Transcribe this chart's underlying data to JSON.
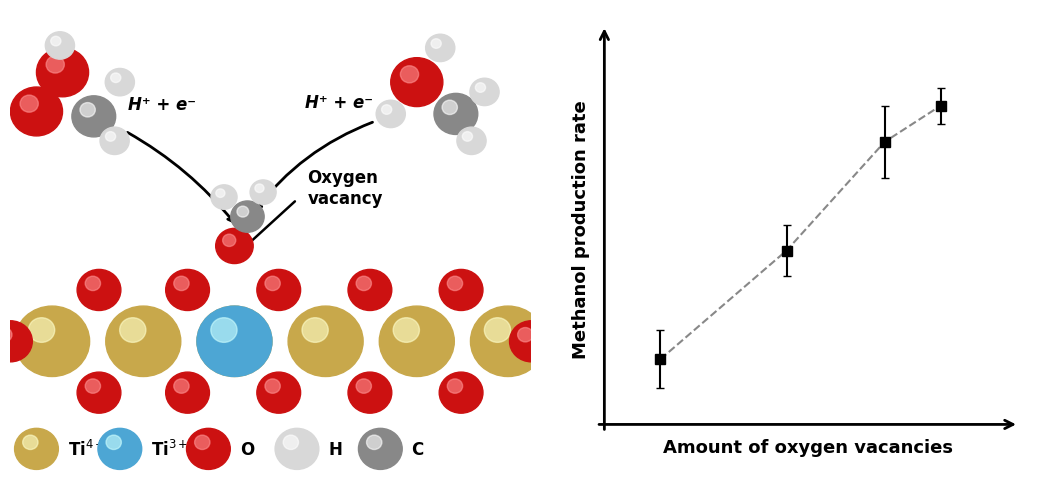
{
  "scatter_x": [
    1.0,
    2.8,
    4.2,
    5.0
  ],
  "scatter_y": [
    1.0,
    2.5,
    4.0,
    4.5
  ],
  "scatter_yerr": [
    0.4,
    0.35,
    0.5,
    0.25
  ],
  "scatter_color": "#000000",
  "scatter_marker": "s",
  "scatter_marker_size": 7,
  "dashed_line_color": "#888888",
  "xlabel": "Amount of oxygen vacancies",
  "ylabel": "Methanol production rate",
  "xlabel_fontsize": 13,
  "ylabel_fontsize": 13,
  "background_color": "#ffffff",
  "annotation_texts": [
    "H⁺ + e⁻",
    "H⁺ + e⁻"
  ],
  "annotation_text_fontsize": 12,
  "oxygen_vacancy_text": "Oxygen\nvacancy",
  "oxygen_vacancy_fontsize": 12,
  "legend_labels": [
    "Ti$^{4+}$",
    "Ti$^{3+}$",
    "O",
    "H",
    "C"
  ],
  "legend_colors": [
    "#c8a84b",
    "#4da6d4",
    "#cc1111",
    "#d8d8d8",
    "#888888"
  ],
  "C_TI4": "#c8a84b",
  "C_TI3": "#4da6d4",
  "C_O": "#cc1111",
  "C_H": "#d8d8d8",
  "C_C": "#888888"
}
